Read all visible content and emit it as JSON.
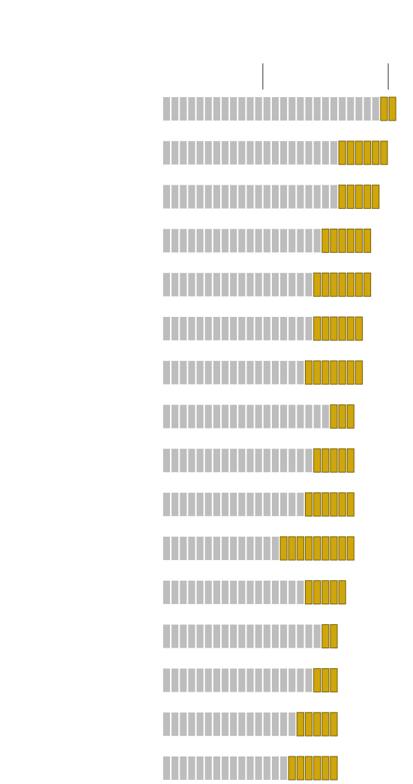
{
  "chart_data": {
    "type": "unit-bar",
    "series": [
      {
        "color": "#bdbdbd",
        "values": [
          26,
          21,
          21,
          19,
          18,
          18,
          17,
          20,
          18,
          17,
          14,
          17,
          19,
          18,
          16,
          15
        ]
      },
      {
        "color": "#cfa60b",
        "values": [
          2,
          6,
          5,
          6,
          7,
          6,
          7,
          3,
          5,
          6,
          9,
          5,
          2,
          3,
          5,
          6
        ]
      }
    ],
    "xticks": [
      12,
      27
    ]
  }
}
